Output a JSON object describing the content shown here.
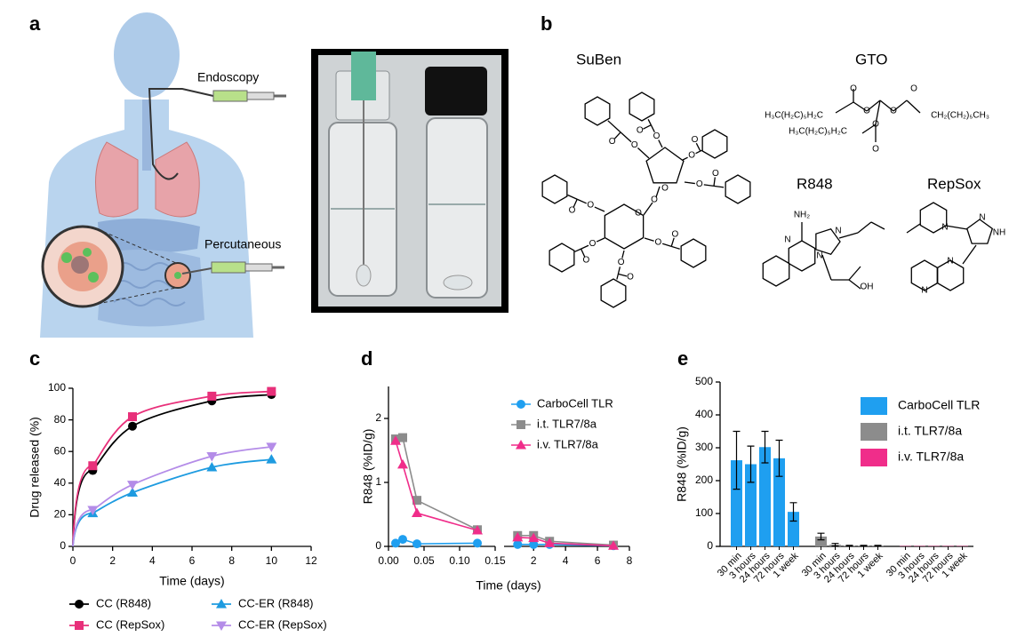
{
  "panel_a": {
    "label": "a",
    "annotations": [
      "Endoscopy",
      "Percutaneous"
    ]
  },
  "panel_b": {
    "label": "b",
    "compounds": [
      {
        "name": "SuBen",
        "atoms": [
          "O",
          "O",
          "O",
          "O",
          "O",
          "O",
          "O",
          "O",
          "O",
          "O",
          "O",
          "O",
          "O",
          "O",
          "O",
          "O",
          "O",
          "O",
          "O"
        ]
      },
      {
        "name": "GTO",
        "atoms": [
          "H₃C(H₂C)₅H₂C",
          "CH₂(CH₂)₅CH₃",
          "H₃C(H₂C)₅H₂C",
          "O",
          "O",
          "O",
          "O",
          "O",
          "O"
        ]
      },
      {
        "name": "R848",
        "atoms": [
          "NH₂",
          "N",
          "N",
          "N",
          "OH"
        ]
      },
      {
        "name": "RepSox",
        "atoms": [
          "N",
          "N",
          "NH",
          "N",
          "N"
        ]
      }
    ]
  },
  "chart_data": [
    {
      "type": "line",
      "label": "c",
      "x_label": "Time (days)",
      "y_label": "Drug released (%)",
      "x": [
        1,
        3,
        7,
        10
      ],
      "xlim": [
        0,
        12
      ],
      "xticks": [
        0,
        2,
        4,
        6,
        8,
        10,
        12
      ],
      "ylim": [
        0,
        100
      ],
      "yticks": [
        0,
        20,
        40,
        60,
        80,
        100
      ],
      "legend": "bottom",
      "series": [
        {
          "name": "CC (R848)",
          "color": "#000000",
          "marker": "circle",
          "values": [
            48,
            76,
            92,
            96
          ]
        },
        {
          "name": "CC (RepSox)",
          "color": "#e8307a",
          "marker": "square",
          "values": [
            51,
            82,
            95,
            98
          ]
        },
        {
          "name": "CC-ER (R848)",
          "color": "#1e9be0",
          "marker": "triangle-up",
          "values": [
            21,
            34,
            50,
            55
          ]
        },
        {
          "name": "CC-ER (RepSox)",
          "color": "#b48ce8",
          "marker": "triangle-down",
          "values": [
            23,
            39,
            57,
            63
          ]
        }
      ]
    },
    {
      "type": "broken_line",
      "label": "d",
      "x_label": "Time (days)",
      "y_label": "R848 (%ID/g)",
      "x": [
        0.01,
        0.02,
        0.04,
        0.125,
        1,
        2,
        3,
        7
      ],
      "segments": [
        {
          "xlim": [
            0,
            0.15
          ],
          "xticks": [
            {
              "value": 0,
              "label": "0.00"
            },
            {
              "value": 0.05,
              "label": "0.05"
            },
            {
              "value": 0.1,
              "label": "0.10"
            },
            {
              "value": 0.15,
              "label": "0.15"
            }
          ]
        },
        {
          "xlim": [
            0.15,
            8
          ],
          "xticks": [
            2,
            4,
            6,
            8
          ]
        }
      ],
      "ylim": [
        0,
        2.5
      ],
      "yticks": [
        0,
        1,
        2
      ],
      "legend": "upper right",
      "series": [
        {
          "name": "CarboCell TLR",
          "color": "#1f9ff0",
          "marker": "circle",
          "values": [
            0.05,
            0.11,
            0.04,
            0.05,
            0.03,
            0.03,
            0.03,
            0.01
          ]
        },
        {
          "name": "i.t. TLR7/8a",
          "color": "#8c8c8c",
          "marker": "square",
          "values": [
            1.68,
            1.7,
            0.72,
            0.26,
            0.17,
            0.17,
            0.08,
            0.02
          ]
        },
        {
          "name": "i.v. TLR7/8a",
          "color": "#f02d8a",
          "marker": "triangle-up",
          "values": [
            1.65,
            1.28,
            0.52,
            0.25,
            0.14,
            0.13,
            0.05,
            0.01
          ]
        }
      ]
    },
    {
      "type": "grouped_bar",
      "label": "e",
      "y_label": "R848 (%ID/g)",
      "categories": [
        "30 min",
        "3 hours",
        "24 hours",
        "72 hours",
        "1 week"
      ],
      "ylim": [
        0,
        500
      ],
      "yticks": [
        0,
        100,
        200,
        300,
        400,
        500
      ],
      "legend": "right",
      "series": [
        {
          "name": "CarboCell TLR",
          "color": "#1f9ff0",
          "values": [
            262,
            250,
            302,
            268,
            105
          ],
          "errors": [
            88,
            55,
            48,
            55,
            28
          ]
        },
        {
          "name": "i.t. TLR7/8a",
          "color": "#8c8c8c",
          "values": [
            30,
            5,
            2,
            2,
            2
          ],
          "errors": [
            10,
            4,
            1,
            1,
            1
          ]
        },
        {
          "name": "i.v. TLR7/8a",
          "color": "#f02d8a",
          "values": [
            1,
            1,
            1,
            1,
            1
          ]
        }
      ]
    }
  ]
}
